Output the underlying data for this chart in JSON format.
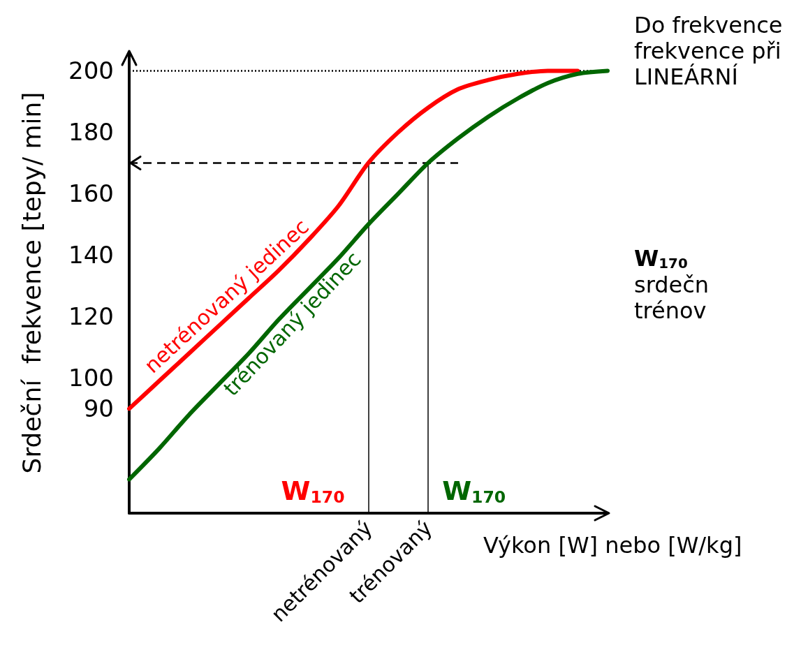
{
  "chart_data": {
    "type": "line",
    "xlabel": "Výkon [W] nebo [W/kg]",
    "ylabel": "Srdeční  frekvence [tepy/ min]",
    "categories": [
      null,
      null,
      null,
      null,
      null,
      null,
      null,
      null,
      "netrénovaný",
      null,
      "trénovaný",
      null,
      null,
      null,
      null,
      null,
      null
    ],
    "ylim": [
      56,
      206
    ],
    "yticks": [
      90,
      100,
      120,
      140,
      160,
      180,
      200
    ],
    "grid": false,
    "legend": false,
    "marker": "none",
    "line_style": "solid",
    "series": [
      {
        "name": "netrénovaný jedinec",
        "color": "#ff0000",
        "values": [
          90,
          99,
          108,
          117,
          126,
          135,
          145,
          156,
          170,
          180,
          188,
          194,
          197,
          199,
          200,
          200,
          null
        ]
      },
      {
        "name": "trénovaný jedinec",
        "color": "#006600",
        "values": [
          67,
          77,
          88,
          98,
          108,
          119,
          129,
          139,
          150,
          160,
          170,
          178,
          185,
          191,
          196,
          199,
          200
        ]
      }
    ],
    "ref_lines": [
      {
        "axis": "y",
        "value": 170,
        "line_style": "dashed",
        "color": "#000000"
      },
      {
        "axis": "y",
        "value": 200,
        "line_style": "dotted",
        "color": "#000000"
      },
      {
        "axis": "x",
        "value": "netrénovaný",
        "line_style": "solid",
        "color": "#000000",
        "label": "W$_{170}$"
      },
      {
        "axis": "x",
        "value": "trénovaný",
        "line_style": "solid",
        "color": "#000000",
        "label": "W$_{170}$"
      }
    ],
    "annotations": [
      "Do frekvence\nfrekvence při\nLINEÁRNÍ",
      "W$_{170}$",
      "srdečn\ntrénov"
    ]
  }
}
